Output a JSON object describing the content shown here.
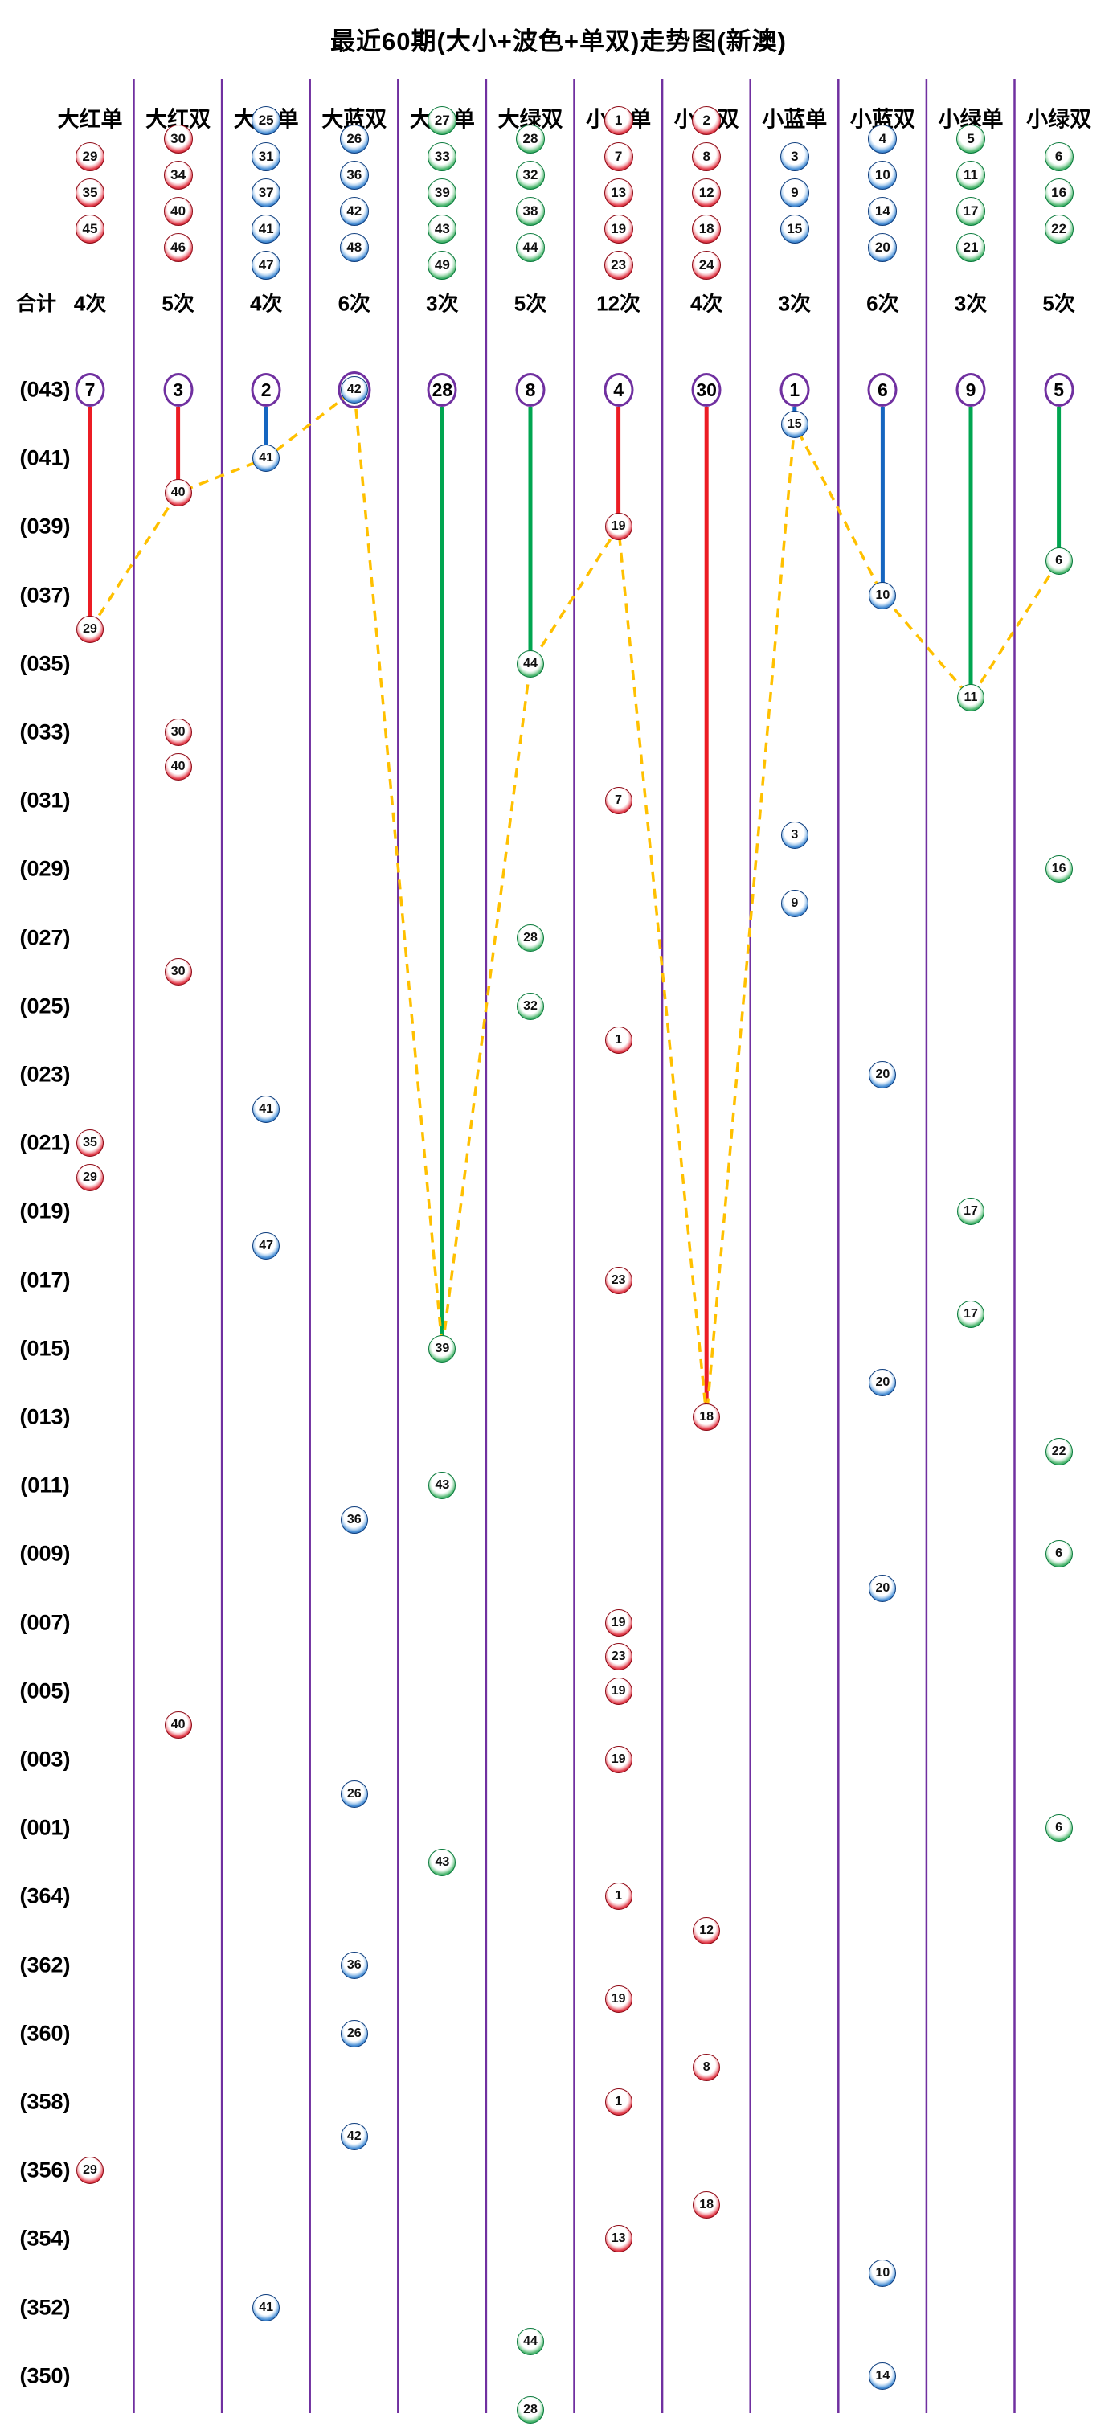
{
  "title": "最近60期(大小+波色+单双)走势图(新澳)",
  "summary_label": "合计",
  "colors": {
    "divider": "#7030A0",
    "miss_circle_stroke": "#7030A0",
    "dashed_link": "#FFC000",
    "red": "#EC1C24",
    "blue": "#1565C0",
    "green": "#00A550",
    "text": "#000000"
  },
  "columns": [
    {
      "label": "大红单",
      "color": "red",
      "members": [
        29,
        35,
        45
      ],
      "total": "4次",
      "miss": 7
    },
    {
      "label": "大红双",
      "color": "red",
      "members": [
        30,
        34,
        40,
        46
      ],
      "total": "5次",
      "miss": 3
    },
    {
      "label": "大蓝单",
      "color": "blue",
      "members": [
        25,
        31,
        37,
        41,
        47
      ],
      "total": "4次",
      "miss": 2
    },
    {
      "label": "大蓝双",
      "color": "blue",
      "members": [
        26,
        36,
        42,
        48
      ],
      "total": "6次",
      "miss": null
    },
    {
      "label": "大绿单",
      "color": "green",
      "members": [
        27,
        33,
        39,
        43,
        49
      ],
      "total": "3次",
      "miss": 28
    },
    {
      "label": "大绿双",
      "color": "green",
      "members": [
        28,
        32,
        38,
        44
      ],
      "total": "5次",
      "miss": 8
    },
    {
      "label": "小红单",
      "color": "red",
      "members": [
        1,
        7,
        13,
        19,
        23
      ],
      "total": "12次",
      "miss": 4
    },
    {
      "label": "小红双",
      "color": "red",
      "members": [
        2,
        8,
        12,
        18,
        24
      ],
      "total": "4次",
      "miss": 30
    },
    {
      "label": "小蓝单",
      "color": "blue",
      "members": [
        3,
        9,
        15
      ],
      "total": "3次",
      "miss": 1
    },
    {
      "label": "小蓝双",
      "color": "blue",
      "members": [
        4,
        10,
        14,
        20
      ],
      "total": "6次",
      "miss": 6
    },
    {
      "label": "小绿单",
      "color": "green",
      "members": [
        5,
        11,
        17,
        21
      ],
      "total": "3次",
      "miss": 9
    },
    {
      "label": "小绿双",
      "color": "green",
      "members": [
        6,
        16,
        22
      ],
      "total": "5次",
      "miss": 5
    }
  ],
  "row_labels": [
    "(043)",
    "(041)",
    "(039)",
    "(037)",
    "(035)",
    "(033)",
    "(031)",
    "(029)",
    "(027)",
    "(025)",
    "(023)",
    "(021)",
    "(019)",
    "(017)",
    "(015)",
    "(013)",
    "(011)",
    "(009)",
    "(007)",
    "(005)",
    "(003)",
    "(001)",
    "(364)",
    "(362)",
    "(360)",
    "(358)",
    "(356)",
    "(354)",
    "(352)",
    "(350)"
  ],
  "chart_data": {
    "type": "scatter",
    "title": "最近60期(大小+波色+单双)走势图(新澳)",
    "rows": 60,
    "columns_order": [
      "大红单",
      "大红双",
      "大蓝单",
      "大蓝双",
      "大绿单",
      "大绿双",
      "小红单",
      "小红双",
      "小蓝单",
      "小蓝双",
      "小绿单",
      "小绿双"
    ],
    "legend_position": "none",
    "grid": "vertical-dividers-only",
    "notes": "One ball per row (newest period at top). Solid colored line drops from the top miss-circle of each column to that column's first ball. Yellow dashed polyline links the first ball of each column from left to right. Column 4 has its ball (42) in the top row ringed instead of a miss number.",
    "points": [
      {
        "n": 42,
        "c": 4
      },
      {
        "n": 15,
        "c": 9
      },
      {
        "n": 41,
        "c": 3
      },
      {
        "n": 40,
        "c": 2
      },
      {
        "n": 19,
        "c": 7
      },
      {
        "n": 6,
        "c": 12
      },
      {
        "n": 10,
        "c": 10
      },
      {
        "n": 29,
        "c": 1
      },
      {
        "n": 44,
        "c": 6
      },
      {
        "n": 11,
        "c": 11
      },
      {
        "n": 30,
        "c": 2
      },
      {
        "n": 40,
        "c": 2
      },
      {
        "n": 7,
        "c": 7
      },
      {
        "n": 3,
        "c": 9
      },
      {
        "n": 16,
        "c": 12
      },
      {
        "n": 9,
        "c": 9
      },
      {
        "n": 28,
        "c": 6
      },
      {
        "n": 30,
        "c": 2
      },
      {
        "n": 32,
        "c": 6
      },
      {
        "n": 1,
        "c": 7
      },
      {
        "n": 20,
        "c": 10
      },
      {
        "n": 41,
        "c": 3
      },
      {
        "n": 35,
        "c": 1
      },
      {
        "n": 29,
        "c": 1
      },
      {
        "n": 17,
        "c": 11
      },
      {
        "n": 47,
        "c": 3
      },
      {
        "n": 23,
        "c": 7
      },
      {
        "n": 17,
        "c": 11
      },
      {
        "n": 39,
        "c": 5
      },
      {
        "n": 20,
        "c": 10
      },
      {
        "n": 18,
        "c": 8
      },
      {
        "n": 22,
        "c": 12
      },
      {
        "n": 43,
        "c": 5
      },
      {
        "n": 36,
        "c": 4
      },
      {
        "n": 6,
        "c": 12
      },
      {
        "n": 20,
        "c": 10
      },
      {
        "n": 19,
        "c": 7
      },
      {
        "n": 23,
        "c": 7
      },
      {
        "n": 19,
        "c": 7
      },
      {
        "n": 40,
        "c": 2
      },
      {
        "n": 19,
        "c": 7
      },
      {
        "n": 26,
        "c": 4
      },
      {
        "n": 6,
        "c": 12
      },
      {
        "n": 43,
        "c": 5
      },
      {
        "n": 1,
        "c": 7
      },
      {
        "n": 12,
        "c": 8
      },
      {
        "n": 36,
        "c": 4
      },
      {
        "n": 19,
        "c": 7
      },
      {
        "n": 26,
        "c": 4
      },
      {
        "n": 8,
        "c": 8
      },
      {
        "n": 1,
        "c": 7
      },
      {
        "n": 42,
        "c": 4
      },
      {
        "n": 29,
        "c": 1
      },
      {
        "n": 18,
        "c": 8
      },
      {
        "n": 13,
        "c": 7
      },
      {
        "n": 10,
        "c": 10
      },
      {
        "n": 41,
        "c": 3
      },
      {
        "n": 44,
        "c": 6
      },
      {
        "n": 14,
        "c": 10
      },
      {
        "n": 28,
        "c": 6
      }
    ]
  }
}
